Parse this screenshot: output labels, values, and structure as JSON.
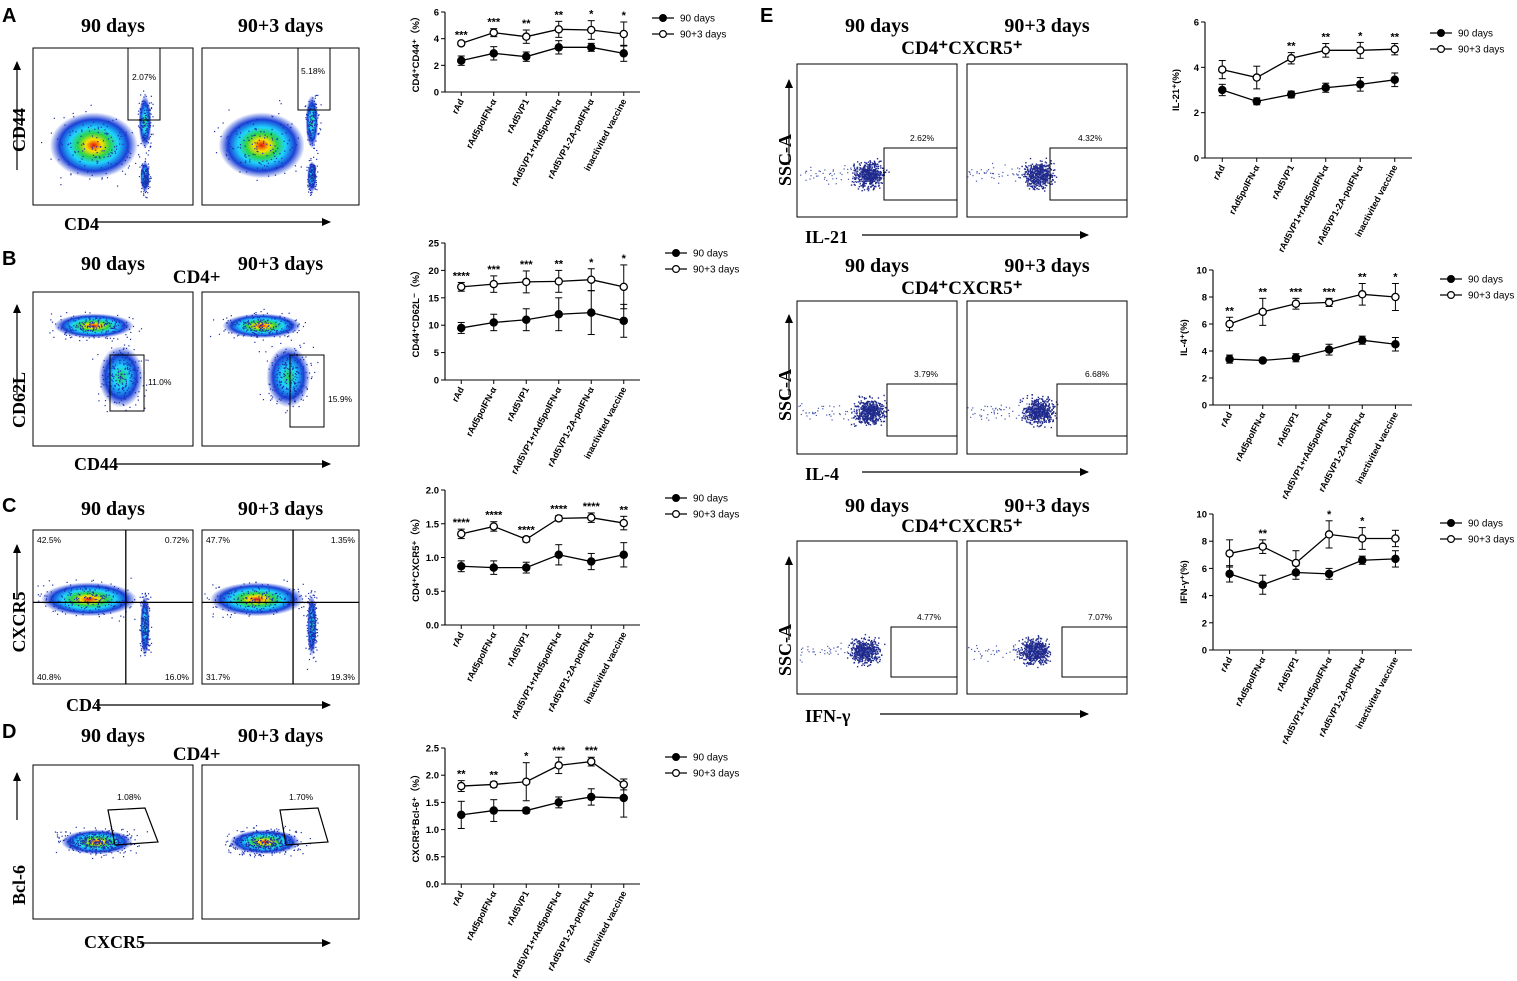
{
  "colors": {
    "black": "#000000",
    "density_blue": "#1a3fd6",
    "density_cyan": "#1fd4ff",
    "density_green": "#2bd44a",
    "density_yellow": "#ffe000",
    "density_red": "#e01010",
    "sparse_dot": "#202a8c"
  },
  "categories": [
    "rAd",
    "rAd5poIFN-α",
    "rAd5VP1",
    "rAd5VP1+rAd5poIFN-α",
    "rAd5VP1-2A-poIFN-α",
    "inactivited vaccine"
  ],
  "legend": [
    "90 days",
    "90+3 days"
  ],
  "panels": [
    {
      "letter": "A",
      "col_titles": [
        "90 days",
        "90+3 days"
      ],
      "subtitle": "",
      "y_label": "CD44",
      "x_label": "CD4",
      "gates": [
        {
          "label": "2.07%"
        },
        {
          "label": "5.18%"
        }
      ]
    },
    {
      "letter": "B",
      "col_titles": [
        "90 days",
        "90+3 days"
      ],
      "subtitle": "CD4+",
      "y_label": "CD62L",
      "x_label": "CD44",
      "gates": [
        {
          "label": "11.0%"
        },
        {
          "label": "15.9%"
        }
      ]
    },
    {
      "letter": "C",
      "col_titles": [
        "90 days",
        "90+3 days"
      ],
      "subtitle": "",
      "y_label": "CXCR5",
      "x_label": "CD4",
      "quadrants": [
        [
          "42.5%",
          "0.72%",
          "40.8%",
          "16.0%"
        ],
        [
          "47.7%",
          "1.35%",
          "31.7%",
          "19.3%"
        ]
      ]
    },
    {
      "letter": "D",
      "col_titles": [
        "90 days",
        "90+3 days"
      ],
      "subtitle": "CD4+",
      "y_label": "Bcl-6",
      "x_label": "CXCR5",
      "gates": [
        {
          "label": "1.08%"
        },
        {
          "label": "1.70%"
        }
      ]
    },
    {
      "letter": "E",
      "col_titles": [
        "90 days",
        "90+3 days"
      ],
      "subtitle": "CD4⁺CXCR5⁺",
      "y_label": "SSC-A",
      "x_label": "IL-21",
      "gates": [
        {
          "label": "2.62%"
        },
        {
          "label": "4.32%"
        }
      ]
    },
    {
      "letter": "",
      "col_titles": [
        "90 days",
        "90+3 days"
      ],
      "subtitle": "CD4⁺CXCR5⁺",
      "y_label": "SSC-A",
      "x_label": "IL-4",
      "gates": [
        {
          "label": "3.79%"
        },
        {
          "label": "6.68%"
        }
      ]
    },
    {
      "letter": "",
      "col_titles": [
        "90 days",
        "90+3 days"
      ],
      "subtitle": "CD4⁺CXCR5⁺",
      "y_label": "SSC-A",
      "x_label": "IFN-γ",
      "gates": [
        {
          "label": "4.77%"
        },
        {
          "label": "7.07%"
        }
      ]
    }
  ],
  "chart_data": [
    {
      "type": "line",
      "id": "A",
      "ylabel": "CD4⁺CD44⁺（%）",
      "ylim": [
        0,
        6
      ],
      "yticks": [
        "0",
        "2",
        "4",
        "6"
      ],
      "series": [
        {
          "name": "90 days",
          "values": [
            2.35,
            2.9,
            2.65,
            3.35,
            3.35,
            2.9
          ],
          "errors": [
            0.35,
            0.5,
            0.35,
            0.5,
            0.3,
            0.6
          ]
        },
        {
          "name": "90+3 days",
          "values": [
            3.65,
            4.45,
            4.15,
            4.7,
            4.65,
            4.35
          ],
          "errors": [
            0.15,
            0.3,
            0.5,
            0.6,
            0.7,
            0.9
          ]
        }
      ],
      "significance": [
        "***",
        "***",
        "**",
        "**",
        "*",
        "*"
      ]
    },
    {
      "type": "line",
      "id": "B",
      "ylabel": "CD44⁺CD62L⁻（%）",
      "ylim": [
        0,
        25
      ],
      "yticks": [
        "0",
        "5",
        "10",
        "15",
        "20",
        "25"
      ],
      "series": [
        {
          "name": "90 days",
          "values": [
            9.5,
            10.5,
            11,
            12,
            12.3,
            10.8
          ],
          "errors": [
            1,
            1.5,
            2,
            3,
            4,
            3
          ]
        },
        {
          "name": "90+3 days",
          "values": [
            17,
            17.5,
            17.9,
            18,
            18.3,
            17
          ],
          "errors": [
            0.8,
            1.5,
            2,
            2,
            2,
            4
          ]
        }
      ],
      "significance": [
        "****",
        "***",
        "***",
        "**",
        "*",
        "*"
      ]
    },
    {
      "type": "line",
      "id": "C",
      "ylabel": "CD4⁺CXCR5⁺（%）",
      "ylim": [
        0,
        2.0
      ],
      "yticks": [
        "0.0",
        "0.5",
        "1.0",
        "1.5",
        "2.0"
      ],
      "series": [
        {
          "name": "90 days",
          "values": [
            0.87,
            0.85,
            0.85,
            1.04,
            0.94,
            1.04
          ],
          "errors": [
            0.08,
            0.1,
            0.08,
            0.15,
            0.12,
            0.18
          ]
        },
        {
          "name": "90+3 days",
          "values": [
            1.35,
            1.46,
            1.27,
            1.58,
            1.59,
            1.51
          ],
          "errors": [
            0.07,
            0.07,
            0.04,
            0.04,
            0.07,
            0.1
          ]
        }
      ],
      "significance": [
        "****",
        "****",
        "****",
        "****",
        "****",
        "**"
      ]
    },
    {
      "type": "line",
      "id": "D",
      "ylabel": "CXCR5⁺Bcl-6⁺（%）",
      "ylim": [
        0,
        2.5
      ],
      "yticks": [
        "0.0",
        "0.5",
        "1.0",
        "1.5",
        "2.0",
        "2.5"
      ],
      "series": [
        {
          "name": "90 days",
          "values": [
            1.27,
            1.35,
            1.35,
            1.5,
            1.6,
            1.58
          ],
          "errors": [
            0.25,
            0.2,
            0.05,
            0.1,
            0.15,
            0.35
          ]
        },
        {
          "name": "90+3 days",
          "values": [
            1.8,
            1.83,
            1.88,
            2.18,
            2.25,
            1.83
          ],
          "errors": [
            0.1,
            0.05,
            0.35,
            0.15,
            0.08,
            0.1
          ]
        }
      ],
      "significance": [
        "**",
        "**",
        "*",
        "***",
        "***",
        ""
      ]
    },
    {
      "type": "line",
      "id": "E1",
      "ylabel": "IL-21⁺(%)",
      "ylim": [
        0,
        6
      ],
      "yticks": [
        "0",
        "2",
        "4",
        "6"
      ],
      "series": [
        {
          "name": "90 days",
          "values": [
            3.0,
            2.5,
            2.8,
            3.1,
            3.25,
            3.45
          ],
          "errors": [
            0.25,
            0.15,
            0.15,
            0.2,
            0.3,
            0.3
          ]
        },
        {
          "name": "90+3 days",
          "values": [
            3.9,
            3.55,
            4.4,
            4.75,
            4.75,
            4.8
          ],
          "errors": [
            0.4,
            0.5,
            0.25,
            0.3,
            0.35,
            0.25
          ]
        }
      ],
      "significance": [
        "",
        "",
        "**",
        "**",
        "*",
        "**"
      ]
    },
    {
      "type": "line",
      "id": "E2",
      "ylabel": "IL-4⁺(%)",
      "ylim": [
        0,
        10
      ],
      "yticks": [
        "0",
        "2",
        "4",
        "6",
        "8",
        "10"
      ],
      "series": [
        {
          "name": "90 days",
          "values": [
            3.4,
            3.3,
            3.5,
            4.1,
            4.8,
            4.5
          ],
          "errors": [
            0.3,
            0.1,
            0.3,
            0.4,
            0.3,
            0.5
          ]
        },
        {
          "name": "90+3 days",
          "values": [
            6.0,
            6.9,
            7.5,
            7.6,
            8.2,
            8.0
          ],
          "errors": [
            0.5,
            1.0,
            0.4,
            0.3,
            0.8,
            1.0
          ]
        }
      ],
      "significance": [
        "**",
        "**",
        "***",
        "***",
        "**",
        "*"
      ]
    },
    {
      "type": "line",
      "id": "E3",
      "ylabel": "IFN-γ⁺(%)",
      "ylim": [
        0,
        10
      ],
      "yticks": [
        "0",
        "2",
        "4",
        "6",
        "8",
        "10"
      ],
      "series": [
        {
          "name": "90 days",
          "values": [
            5.6,
            4.8,
            5.7,
            5.6,
            6.6,
            6.7
          ],
          "errors": [
            0.6,
            0.7,
            0.5,
            0.4,
            0.3,
            0.6
          ]
        },
        {
          "name": "90+3 days",
          "values": [
            7.1,
            7.6,
            6.4,
            8.5,
            8.2,
            8.2
          ],
          "errors": [
            1.0,
            0.5,
            0.9,
            1.0,
            0.8,
            0.6
          ]
        }
      ],
      "significance": [
        "",
        "**",
        "",
        "*",
        "*",
        ""
      ]
    }
  ]
}
